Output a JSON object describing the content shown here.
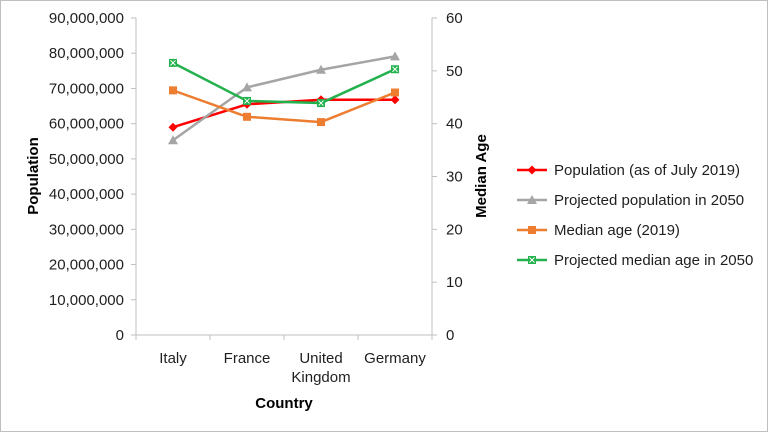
{
  "chart_data": {
    "type": "line",
    "categories": [
      "Italy",
      "France",
      "United Kingdom",
      "Germany"
    ],
    "category_lines": [
      [
        "Italy"
      ],
      [
        "France"
      ],
      [
        "United",
        "Kingdom"
      ],
      [
        "Germany"
      ]
    ],
    "xlabel": "Country",
    "ylabel": "Population",
    "y2label": "Median Age",
    "ylim": [
      0,
      90000000
    ],
    "y_ticks": [
      "0",
      "10,000,000",
      "20,000,000",
      "30,000,000",
      "40,000,000",
      "50,000,000",
      "60,000,000",
      "70,000,000",
      "80,000,000",
      "90,000,000"
    ],
    "y2lim": [
      0,
      60
    ],
    "y2_ticks": [
      "0",
      "10",
      "20",
      "30",
      "40",
      "50",
      "60"
    ],
    "grid": false,
    "legend_position": "right",
    "series": [
      {
        "name": "Population (as of July 2019)",
        "axis": "left",
        "color": "#ff0000",
        "marker": "diamond",
        "values": [
          59000000,
          65500000,
          66800000,
          66800000
        ]
      },
      {
        "name": "Projected population in 2050",
        "axis": "left",
        "color": "#a5a5a5",
        "marker": "triangle",
        "values": [
          55300000,
          70300000,
          75300000,
          79100000
        ]
      },
      {
        "name": "Median age (2019)",
        "axis": "right",
        "color": "#ed7d31",
        "marker": "square",
        "values": [
          46.3,
          41.3,
          40.3,
          45.9
        ]
      },
      {
        "name": "Projected median age in 2050",
        "axis": "right",
        "color": "#22b14c",
        "marker": "square-x",
        "values": [
          51.5,
          44.3,
          43.9,
          50.3
        ]
      }
    ]
  }
}
